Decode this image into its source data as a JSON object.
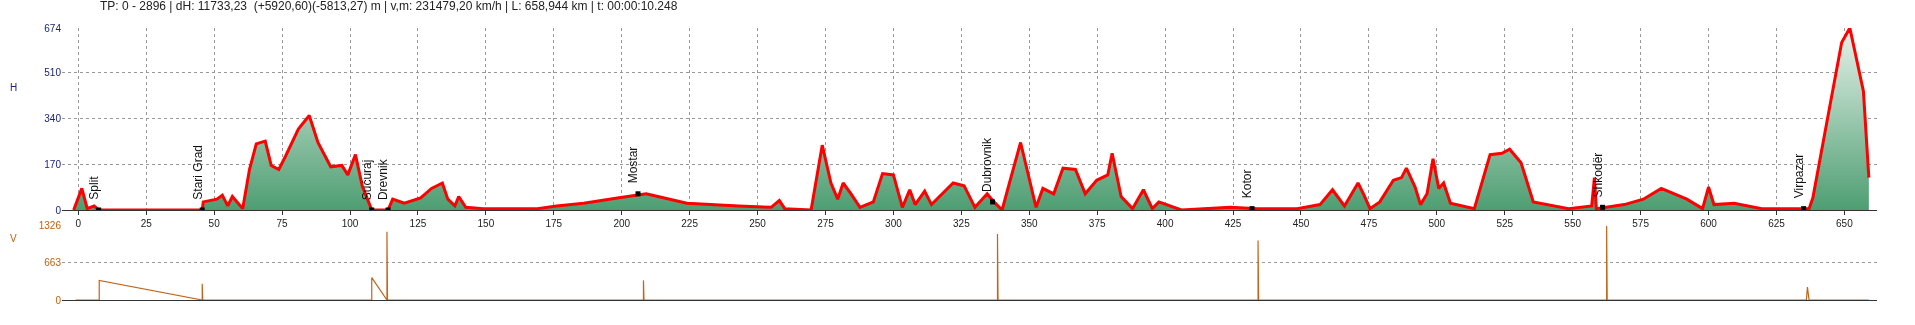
{
  "chart_data": [
    {
      "type": "area",
      "title": "TP: 0 - 2896 | dH: 11733,23  (+5920,60)(-5813,27) m | v,m: 231479,20 km/h | L: 658,944 km | t: 00:00:10.248",
      "ylabel": "H",
      "xlim": [
        -6,
        662
      ],
      "xticks": [
        0,
        25,
        50,
        75,
        100,
        125,
        150,
        175,
        200,
        225,
        250,
        275,
        300,
        325,
        350,
        375,
        400,
        425,
        450,
        475,
        500,
        525,
        550,
        575,
        600,
        625,
        650
      ],
      "ylim": [
        0,
        674
      ],
      "yticks": [
        0,
        170,
        340,
        510,
        674
      ],
      "grid": true,
      "series": [
        {
          "color": "#ff0000",
          "x": [
            -1.7,
            1.3,
            3.3,
            5.8,
            7.5,
            45.6,
            46,
            51,
            53,
            55,
            56.7,
            60.5,
            63,
            65.5,
            68.8,
            71,
            73.8,
            76.3,
            81,
            85,
            88.2,
            92.9,
            97,
            99.2,
            102,
            104.5,
            108,
            114,
            115.7,
            120,
            126,
            130,
            134,
            136,
            138.6,
            140,
            142.6,
            149,
            169,
            176,
            186,
            199,
            209,
            224,
            243,
            255,
            258,
            260,
            269.7,
            273.8,
            277,
            279.5,
            281.5,
            284.4,
            287.7,
            292.6,
            296,
            300,
            303.3,
            306,
            308,
            311.5,
            314,
            322,
            326,
            330,
            334.5,
            337,
            340,
            342.7,
            346.8,
            352.5,
            355,
            359,
            362.4,
            367,
            370.6,
            374.8,
            378.9,
            380.5,
            383.8,
            388,
            392,
            395.3,
            397.7,
            406,
            424,
            434,
            448.6,
            457,
            461.6,
            466,
            471,
            473,
            475.4,
            479,
            484,
            487,
            488.8,
            492,
            494,
            496.4,
            498.6,
            500.7,
            502.5,
            505,
            513.8,
            519.6,
            524,
            526.8,
            531,
            535.5,
            548.5,
            557,
            558,
            558.7,
            569,
            576,
            582.6,
            592,
            597.8,
            600,
            602,
            609.4,
            619.6,
            637,
            638.4,
            644,
            649,
            652,
            657,
            659
          ],
          "values": [
            0,
            80,
            5,
            15,
            0,
            0,
            30,
            40,
            55,
            15,
            50,
            5,
            150,
            245,
            255,
            165,
            150,
            200,
            300,
            350,
            250,
            160,
            165,
            130,
            205,
            90,
            0,
            0,
            40,
            25,
            45,
            80,
            100,
            40,
            15,
            50,
            10,
            5,
            5,
            15,
            25,
            45,
            60,
            25,
            15,
            10,
            35,
            5,
            0,
            240,
            100,
            40,
            100,
            60,
            10,
            30,
            135,
            130,
            10,
            75,
            20,
            70,
            20,
            100,
            90,
            10,
            60,
            30,
            0,
            100,
            250,
            10,
            80,
            60,
            155,
            150,
            60,
            110,
            130,
            210,
            50,
            5,
            75,
            5,
            30,
            0,
            10,
            5,
            5,
            20,
            75,
            15,
            100,
            60,
            5,
            30,
            110,
            120,
            155,
            85,
            20,
            60,
            190,
            80,
            100,
            25,
            5,
            205,
            210,
            225,
            175,
            30,
            5,
            15,
            120,
            5,
            20,
            40,
            80,
            40,
            5,
            85,
            20,
            25,
            5,
            5,
            45,
            350,
            620,
            674,
            440,
            120
          ]
        }
      ],
      "annotations": [
        {
          "text": "Split",
          "x": 7.5,
          "y": 0
        },
        {
          "text": "Stari Grad",
          "x": 45.6,
          "y": 0
        },
        {
          "text": "Sućuraj",
          "x": 108,
          "y": 0
        },
        {
          "text": "Drevnik",
          "x": 114,
          "y": 0
        },
        {
          "text": "Mostar",
          "x": 206,
          "y": 60
        },
        {
          "text": "Dubrovnik",
          "x": 336.5,
          "y": 30
        },
        {
          "text": "Kotor",
          "x": 432,
          "y": 5
        },
        {
          "text": "Shkodër",
          "x": 561,
          "y": 10
        },
        {
          "text": "Virpazar",
          "x": 635,
          "y": 5
        }
      ]
    },
    {
      "type": "line",
      "ylabel": "V",
      "xlim": [
        -6,
        662
      ],
      "ylim": [
        0,
        1326
      ],
      "yticks": [
        0,
        663,
        1326
      ],
      "grid": "y",
      "tick_labels": "y",
      "series": [
        {
          "color": "#c0651a",
          "x": [
            -1,
            7.7,
            7.7,
            45.6,
            45.6,
            45.8,
            108,
            108,
            113.6,
            113.6,
            113.8,
            208,
            208,
            208.2,
            338.3,
            338.3,
            338.5,
            434.2,
            434.2,
            434.4,
            562.5,
            562.5,
            562.7,
            636,
            636.4,
            637,
            659
          ],
          "values": [
            0,
            0,
            350,
            0,
            290,
            0,
            0,
            400,
            0,
            1220,
            0,
            0,
            350,
            0,
            0,
            1180,
            0,
            0,
            1060,
            0,
            0,
            1326,
            0,
            0,
            230,
            0,
            0
          ]
        }
      ]
    }
  ]
}
